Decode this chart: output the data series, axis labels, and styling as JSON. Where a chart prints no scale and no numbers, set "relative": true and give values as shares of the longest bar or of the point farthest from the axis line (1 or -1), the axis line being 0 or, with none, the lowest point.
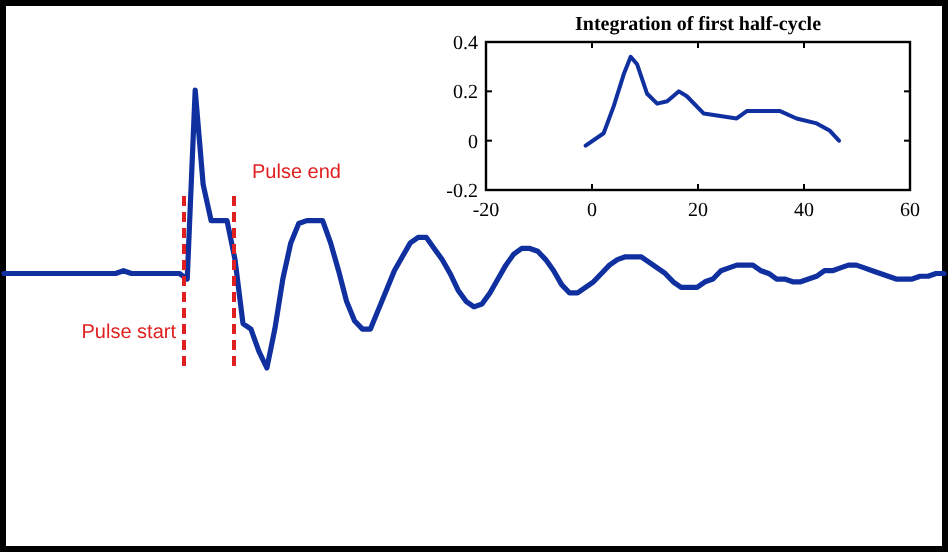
{
  "chart_data": [
    {
      "type": "line",
      "relative": true,
      "categories": [
        null,
        null,
        null,
        null,
        null,
        null,
        null,
        null,
        null,
        null,
        null,
        null,
        null,
        null,
        null,
        null,
        null,
        null,
        null,
        null,
        null,
        null,
        null,
        null,
        null,
        null,
        null,
        null,
        null,
        null,
        null,
        null,
        null,
        null,
        null,
        null,
        null,
        null,
        null,
        null,
        null,
        null,
        null,
        null,
        null,
        null,
        null,
        null,
        null,
        null,
        null,
        null,
        null,
        null,
        null,
        null,
        null,
        null,
        null,
        null,
        null,
        null,
        null,
        null,
        null,
        null,
        null,
        null,
        null,
        null,
        null,
        null,
        null,
        null,
        null,
        null,
        null,
        null,
        null,
        null,
        null,
        null,
        null,
        null,
        null,
        null,
        null,
        null,
        null,
        null,
        null,
        null,
        null,
        null,
        null,
        null,
        null,
        null,
        null,
        null,
        null,
        null,
        null,
        null,
        null,
        null,
        null,
        null,
        null,
        null,
        null,
        null,
        null,
        null,
        null,
        null,
        null,
        null,
        null
      ],
      "series": [
        {
          "color": "#1030a0",
          "values": [
            0.34,
            0.34,
            0.34,
            0.34,
            0.34,
            0.34,
            0.34,
            0.34,
            0.34,
            0.34,
            0.34,
            0.34,
            0.34,
            0.34,
            0.34,
            0.35,
            0.34,
            0.34,
            0.34,
            0.34,
            0.34,
            0.34,
            0.34,
            0.32,
            1.0,
            0.66,
            0.53,
            0.53,
            0.53,
            0.39,
            0.16,
            0.14,
            0.06,
            0,
            0.14,
            0.32,
            0.45,
            0.52,
            0.53,
            0.53,
            0.53,
            0.45,
            0.35,
            0.24,
            0.17,
            0.14,
            0.14,
            0.21,
            0.28,
            0.35,
            0.4,
            0.45,
            0.47,
            0.47,
            0.43,
            0.39,
            0.34,
            0.28,
            0.24,
            0.22,
            0.23,
            0.27,
            0.32,
            0.37,
            0.41,
            0.43,
            0.43,
            0.42,
            0.39,
            0.35,
            0.3,
            0.27,
            0.27,
            0.29,
            0.31,
            0.34,
            0.37,
            0.39,
            0.4,
            0.4,
            0.4,
            0.38,
            0.36,
            0.34,
            0.31,
            0.29,
            0.29,
            0.29,
            0.31,
            0.32,
            0.35,
            0.36,
            0.37,
            0.37,
            0.37,
            0.35,
            0.34,
            0.32,
            0.32,
            0.31,
            0.31,
            0.32,
            0.33,
            0.35,
            0.35,
            0.36,
            0.37,
            0.37,
            0.36,
            0.35,
            0.34,
            0.33,
            0.32,
            0.32,
            0.32,
            0.33,
            0.33,
            0.34,
            0.34
          ]
        }
      ],
      "annotations": [
        "Pulse start",
        "Pulse end"
      ]
    },
    {
      "type": "line",
      "title": "Integration of first half-cycle",
      "x": [
        -1.2,
        2.2,
        4.1,
        6.0,
        7.3,
        8.5,
        10.4,
        12.3,
        14.2,
        16.4,
        17.9,
        21.1,
        24.2,
        27.3,
        29.2,
        33.0,
        35.5,
        38.6,
        42.4,
        44.9,
        46.6
      ],
      "series": [
        {
          "color": "#1030a0",
          "values": [
            -0.02,
            0.03,
            0.14,
            0.27,
            0.34,
            0.31,
            0.19,
            0.15,
            0.16,
            0.2,
            0.18,
            0.11,
            0.1,
            0.09,
            0.12,
            0.12,
            0.12,
            0.09,
            0.07,
            0.04,
            0.0
          ]
        }
      ],
      "xlim": [
        -20,
        60
      ],
      "ylim": [
        -0.2,
        0.4
      ],
      "xticks": [
        -20,
        0,
        20,
        40,
        60
      ],
      "yticks": [
        -0.2,
        0,
        0.2,
        0.4
      ]
    }
  ]
}
